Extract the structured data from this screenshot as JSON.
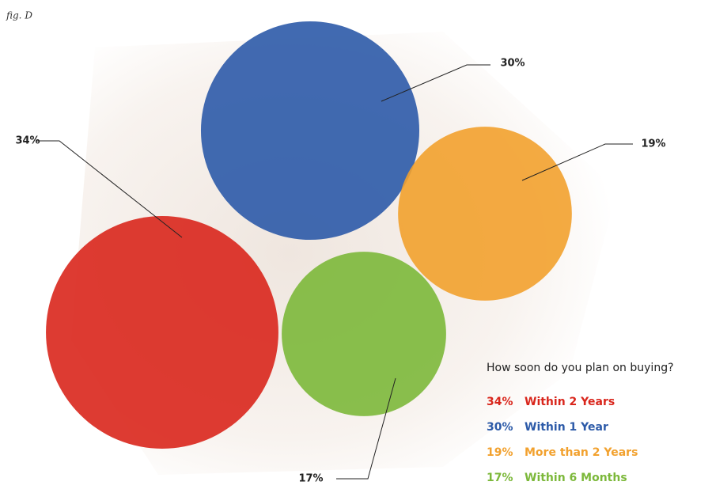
{
  "chart_data": {
    "type": "bubble",
    "figure_label": "fig. D",
    "title": "How soon do you plan on buying?",
    "categories": [
      "Within 2 Years",
      "Within 1 Year",
      "More than 2 Years",
      "Within 6 Months"
    ],
    "values": [
      34,
      30,
      19,
      17
    ],
    "value_labels": [
      "34%",
      "30%",
      "19%",
      "17%"
    ],
    "colors": [
      "#d9261c",
      "#2c5aa8",
      "#f2a12e",
      "#7cb83a"
    ]
  }
}
